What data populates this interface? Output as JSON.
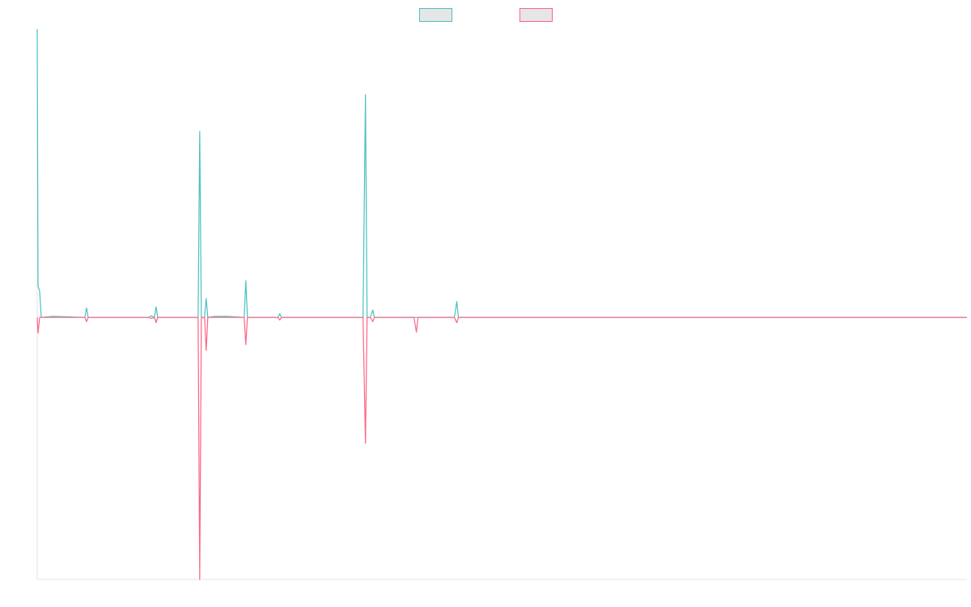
{
  "chart_data": {
    "type": "line",
    "title": "",
    "xlabel": "",
    "ylabel": "",
    "grid": false,
    "legend": {
      "position": "top-center",
      "entries": [
        {
          "label": "",
          "color": "#4bc0c0"
        },
        {
          "label": "",
          "color": "#ff6384"
        }
      ]
    },
    "x_range": [
      0,
      1150
    ],
    "ylim": [
      -500,
      550
    ],
    "series": [
      {
        "color": "#4bc0c0",
        "fill": "#e6e6e6",
        "points": [
          [
            0,
            550
          ],
          [
            1,
            60
          ],
          [
            3,
            50
          ],
          [
            5,
            0
          ],
          [
            20,
            2
          ],
          [
            59,
            0
          ],
          [
            61,
            18
          ],
          [
            63,
            0
          ],
          [
            138,
            0
          ],
          [
            141,
            3
          ],
          [
            145,
            0
          ],
          [
            147,
            20
          ],
          [
            149,
            0
          ],
          [
            199,
            0
          ],
          [
            201,
            355
          ],
          [
            203,
            0
          ],
          [
            207,
            0
          ],
          [
            209,
            36
          ],
          [
            211,
            0
          ],
          [
            220,
            2
          ],
          [
            235,
            2
          ],
          [
            256,
            0
          ],
          [
            258,
            70
          ],
          [
            260,
            0
          ],
          [
            298,
            0
          ],
          [
            300,
            7
          ],
          [
            302,
            0
          ],
          [
            403,
            0
          ],
          [
            406,
            425
          ],
          [
            408,
            0
          ],
          [
            412,
            0
          ],
          [
            415,
            14
          ],
          [
            417,
            0
          ],
          [
            516,
            0
          ],
          [
            519,
            30
          ],
          [
            521,
            0
          ],
          [
            1150,
            0
          ]
        ]
      },
      {
        "color": "#ff6384",
        "fill": "#e6e6e6",
        "points": [
          [
            0,
            0
          ],
          [
            1,
            -30
          ],
          [
            3,
            0
          ],
          [
            20,
            0
          ],
          [
            59,
            0
          ],
          [
            61,
            -8
          ],
          [
            63,
            0
          ],
          [
            138,
            0
          ],
          [
            141,
            -2
          ],
          [
            145,
            0
          ],
          [
            147,
            -10
          ],
          [
            149,
            0
          ],
          [
            199,
            0
          ],
          [
            201,
            -500
          ],
          [
            203,
            0
          ],
          [
            207,
            0
          ],
          [
            209,
            -63
          ],
          [
            211,
            0
          ],
          [
            256,
            0
          ],
          [
            258,
            -52
          ],
          [
            260,
            0
          ],
          [
            298,
            0
          ],
          [
            300,
            -5
          ],
          [
            302,
            0
          ],
          [
            403,
            0
          ],
          [
            406,
            -240
          ],
          [
            408,
            0
          ],
          [
            412,
            0
          ],
          [
            415,
            -8
          ],
          [
            417,
            0
          ],
          [
            466,
            0
          ],
          [
            469,
            -28
          ],
          [
            471,
            0
          ],
          [
            516,
            0
          ],
          [
            519,
            -10
          ],
          [
            521,
            0
          ],
          [
            1150,
            0
          ]
        ]
      }
    ]
  }
}
